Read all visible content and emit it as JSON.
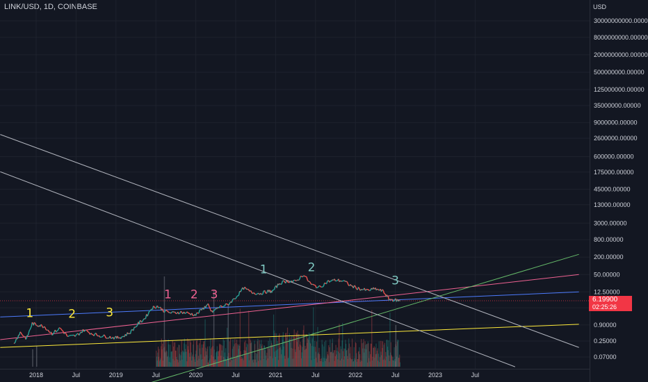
{
  "header": {
    "title": "LINK/USD, 1D, COINBASE"
  },
  "chart_data": {
    "type": "line",
    "scale": "log",
    "currency_label": "USD",
    "y_ticks": [
      "30000000000.00000",
      "8000000000.00000",
      "2000000000.00000",
      "500000000.00000",
      "125000000.00000",
      "35000000.00000",
      "9000000.00000",
      "2600000.00000",
      "600000.00000",
      "175000.00000",
      "45000.00000",
      "13000.00000",
      "3000.00000",
      "800.00000",
      "200.00000",
      "50.00000",
      "12.50000",
      "3.50000",
      "0.90000",
      "0.25000",
      "0.07000"
    ],
    "x_ticks": [
      "2018",
      "Jul",
      "2019",
      "Jul",
      "2020",
      "Jul",
      "2021",
      "Jul",
      "2022",
      "Jul",
      "2023",
      "Jul"
    ],
    "last_price": "6.19900",
    "countdown": "02:25:26",
    "wave_labels": [
      {
        "text": "1",
        "color": "#ffeb3b",
        "date": 2017.92,
        "price": 1.7
      },
      {
        "text": "2",
        "color": "#ffeb3b",
        "date": 2018.45,
        "price": 1.6
      },
      {
        "text": "3",
        "color": "#ffeb3b",
        "date": 2018.92,
        "price": 1.8
      },
      {
        "text": "1",
        "color": "#f06292",
        "date": 2019.65,
        "price": 7.5
      },
      {
        "text": "2",
        "color": "#f06292",
        "date": 2019.98,
        "price": 7.5
      },
      {
        "text": "3",
        "color": "#f06292",
        "date": 2020.23,
        "price": 7.5
      },
      {
        "text": "1",
        "color": "#80cbc4",
        "date": 2020.85,
        "price": 55
      },
      {
        "text": "2",
        "color": "#80cbc4",
        "date": 2021.45,
        "price": 65
      },
      {
        "text": "3",
        "color": "#80cbc4",
        "date": 2022.5,
        "price": 23
      }
    ],
    "trend_lines": [
      {
        "color": "#ffeb3b",
        "from": [
          2017.55,
          0.15
        ],
        "to": [
          2024.8,
          0.95
        ]
      },
      {
        "color": "#4d7cfe",
        "from": [
          2017.55,
          1.7
        ],
        "to": [
          2024.8,
          12.5
        ]
      },
      {
        "color": "#f06292",
        "from": [
          2017.55,
          0.28
        ],
        "to": [
          2024.8,
          50
        ]
      },
      {
        "color": "#66bb6a",
        "from": [
          2018.85,
          0.003
        ],
        "to": [
          2024.8,
          250
        ]
      },
      {
        "color": "#b2b5be",
        "from": [
          2017.55,
          3500000
        ],
        "to": [
          2024.8,
          0.15
        ]
      },
      {
        "color": "#b2b5be",
        "from": [
          2017.55,
          180000
        ],
        "to": [
          2024.0,
          0.032
        ]
      }
    ],
    "price_series": [
      [
        2017.72,
        0.2
      ],
      [
        2017.8,
        0.5
      ],
      [
        2017.88,
        0.3
      ],
      [
        2017.95,
        1.0
      ],
      [
        2018.02,
        0.9
      ],
      [
        2018.1,
        0.8
      ],
      [
        2018.2,
        0.45
      ],
      [
        2018.3,
        0.7
      ],
      [
        2018.4,
        0.35
      ],
      [
        2018.5,
        0.38
      ],
      [
        2018.6,
        0.6
      ],
      [
        2018.7,
        0.45
      ],
      [
        2018.8,
        0.38
      ],
      [
        2018.9,
        0.35
      ],
      [
        2019.0,
        0.32
      ],
      [
        2019.08,
        0.35
      ],
      [
        2019.18,
        0.5
      ],
      [
        2019.28,
        1.0
      ],
      [
        2019.36,
        1.5
      ],
      [
        2019.45,
        3.5
      ],
      [
        2019.52,
        4.0
      ],
      [
        2019.6,
        2.8
      ],
      [
        2019.7,
        2.3
      ],
      [
        2019.8,
        2.5
      ],
      [
        2019.9,
        2.3
      ],
      [
        2020.0,
        2.0
      ],
      [
        2020.1,
        3.5
      ],
      [
        2020.15,
        4.5
      ],
      [
        2020.2,
        2.5
      ],
      [
        2020.3,
        3.8
      ],
      [
        2020.4,
        4.5
      ],
      [
        2020.5,
        8.0
      ],
      [
        2020.6,
        17.0
      ],
      [
        2020.7,
        12.0
      ],
      [
        2020.8,
        11.0
      ],
      [
        2020.9,
        13.0
      ],
      [
        2020.96,
        13.0
      ],
      [
        2021.05,
        25.0
      ],
      [
        2021.15,
        30.0
      ],
      [
        2021.25,
        28.0
      ],
      [
        2021.35,
        50.0
      ],
      [
        2021.45,
        22.0
      ],
      [
        2021.55,
        18.0
      ],
      [
        2021.65,
        28.0
      ],
      [
        2021.75,
        32.0
      ],
      [
        2021.85,
        30.0
      ],
      [
        2021.95,
        20.0
      ],
      [
        2022.05,
        16.0
      ],
      [
        2022.15,
        14.0
      ],
      [
        2022.25,
        16.0
      ],
      [
        2022.35,
        13.0
      ],
      [
        2022.42,
        7.0
      ],
      [
        2022.5,
        6.5
      ],
      [
        2022.56,
        6.19
      ]
    ],
    "current_price_line": 6.199
  }
}
